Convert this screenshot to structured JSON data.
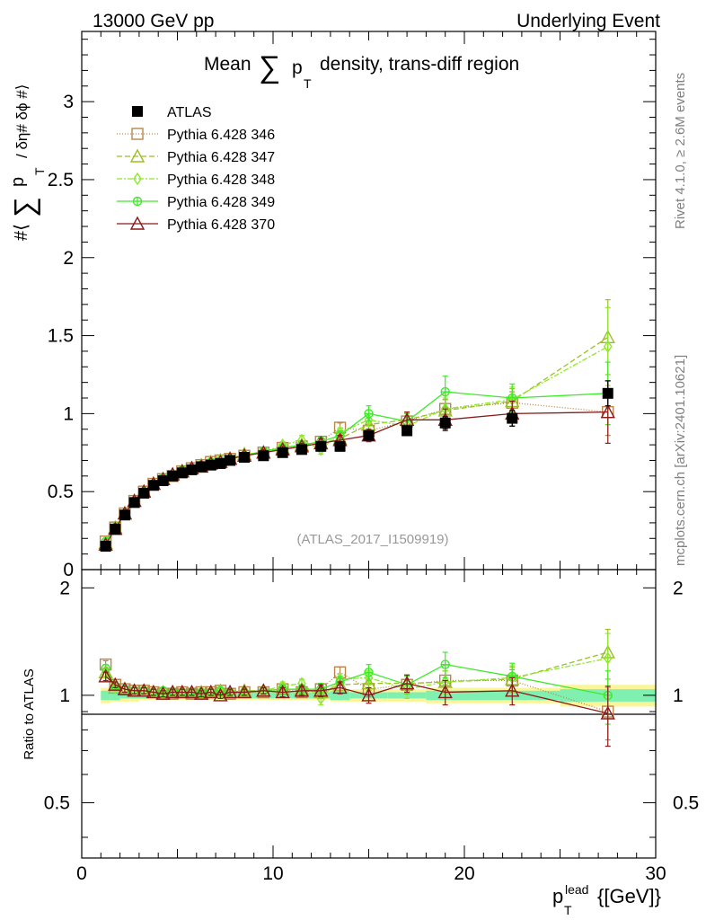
{
  "header": {
    "left": "13000 GeV pp",
    "right": "Underlying Event"
  },
  "side_text": {
    "rivet": "Rivet 4.1.0, ≥ 2.6M events",
    "mcplots": "mcplots.cern.ch [arXiv:2401.10621]"
  },
  "colors": {
    "ATLAS": "#000000",
    "p346": "#b8864a",
    "p347": "#9cbf26",
    "p348": "#8fe82d",
    "p349": "#3fea2a",
    "p370": "#8b1a1a",
    "band_inner": "#7ff0b0",
    "band_outer": "#fbf59a"
  },
  "chart_data": {
    "type": "line",
    "title_parts": {
      "t1": "Mean",
      "t2": "∑",
      "t3": "p",
      "t4": "T",
      "t5": "density, trans-diff region"
    },
    "watermark": "(ATLAS_2017_I1509919)",
    "ylabel_parts": {
      "a": "#⟨",
      "b": "∑",
      "c": "p",
      "d": "T",
      "e": "/ δη# δϕ #⟩"
    },
    "ratio_ylabel": "Ratio to ATLAS",
    "xlabel_parts": {
      "p": "p",
      "sub": "T",
      "sup": "lead",
      "unit": "{[GeV]}"
    },
    "xlim": [
      0,
      30
    ],
    "ylim_main": [
      0,
      3.45
    ],
    "ylim_ratio": [
      0.35,
      2.25
    ],
    "x_ticks": [
      "0",
      "10",
      "20",
      "30"
    ],
    "y_ticks_main": [
      "0.5",
      "1",
      "1.5",
      "2",
      "2.5",
      "3"
    ],
    "y_tick_zero": "0",
    "y_ticks_ratio": [
      "0.5",
      "1",
      "2"
    ],
    "y_ticks_ratio_right": [
      "0.5",
      "1",
      "2"
    ],
    "x": [
      1.25,
      1.75,
      2.25,
      2.75,
      3.25,
      3.75,
      4.25,
      4.75,
      5.25,
      5.75,
      6.25,
      6.75,
      7.25,
      7.75,
      8.5,
      9.5,
      10.5,
      11.5,
      12.5,
      13.5,
      15,
      17,
      19,
      22.5,
      27.5
    ],
    "data_series": {
      "name": "ATLAS",
      "values": [
        0.15,
        0.26,
        0.35,
        0.43,
        0.49,
        0.54,
        0.57,
        0.6,
        0.62,
        0.64,
        0.66,
        0.67,
        0.68,
        0.7,
        0.72,
        0.73,
        0.75,
        0.77,
        0.79,
        0.79,
        0.86,
        0.89,
        0.94,
        0.97,
        1.13
      ],
      "errors": [
        0.01,
        0.01,
        0.01,
        0.01,
        0.01,
        0.01,
        0.01,
        0.01,
        0.01,
        0.01,
        0.01,
        0.01,
        0.01,
        0.01,
        0.01,
        0.01,
        0.01,
        0.02,
        0.02,
        0.02,
        0.02,
        0.03,
        0.04,
        0.05,
        0.08
      ]
    },
    "series": [
      {
        "name": "Pythia 6.428 346",
        "marker": "square",
        "dash": "1,2",
        "values": [
          0.18,
          0.27,
          0.36,
          0.44,
          0.5,
          0.55,
          0.58,
          0.6,
          0.63,
          0.65,
          0.67,
          0.69,
          0.7,
          0.71,
          0.73,
          0.75,
          0.78,
          0.79,
          0.82,
          0.91,
          0.89,
          0.95,
          1.03,
          1.07,
          1.01
        ],
        "errors": [
          0.01,
          0.01,
          0.01,
          0.01,
          0.01,
          0.01,
          0.01,
          0.01,
          0.01,
          0.01,
          0.01,
          0.01,
          0.01,
          0.01,
          0.02,
          0.02,
          0.02,
          0.02,
          0.03,
          0.03,
          0.04,
          0.05,
          0.06,
          0.07,
          0.15
        ],
        "ratio": [
          1.22,
          1.07,
          1.04,
          1.03,
          1.03,
          1.02,
          1.01,
          1.01,
          1.02,
          1.01,
          1.02,
          1.02,
          1.03,
          1.01,
          1.02,
          1.02,
          1.04,
          1.02,
          1.04,
          1.16,
          1.04,
          1.07,
          1.1,
          1.1,
          0.9
        ],
        "ratio_err": [
          0.03,
          0.02,
          0.02,
          0.02,
          0.02,
          0.02,
          0.02,
          0.02,
          0.02,
          0.02,
          0.02,
          0.02,
          0.02,
          0.02,
          0.02,
          0.02,
          0.03,
          0.03,
          0.04,
          0.04,
          0.05,
          0.06,
          0.07,
          0.08,
          0.15
        ]
      },
      {
        "name": "Pythia 6.428 347",
        "marker": "triangle",
        "dash": "6,3",
        "values": [
          0.17,
          0.27,
          0.36,
          0.44,
          0.5,
          0.55,
          0.58,
          0.61,
          0.63,
          0.65,
          0.67,
          0.69,
          0.7,
          0.71,
          0.74,
          0.75,
          0.78,
          0.8,
          0.81,
          0.84,
          0.93,
          0.96,
          1.02,
          1.08,
          1.49
        ],
        "errors": [
          0.01,
          0.01,
          0.01,
          0.01,
          0.01,
          0.01,
          0.01,
          0.01,
          0.01,
          0.01,
          0.01,
          0.01,
          0.01,
          0.01,
          0.02,
          0.02,
          0.02,
          0.02,
          0.03,
          0.03,
          0.04,
          0.05,
          0.07,
          0.08,
          0.24
        ],
        "ratio": [
          1.16,
          1.05,
          1.04,
          1.03,
          1.03,
          1.02,
          1.02,
          1.02,
          1.02,
          1.02,
          1.02,
          1.02,
          1.03,
          1.02,
          1.03,
          1.03,
          1.04,
          1.04,
          1.02,
          1.07,
          1.08,
          1.08,
          1.09,
          1.11,
          1.32
        ],
        "ratio_err": [
          0.03,
          0.02,
          0.02,
          0.02,
          0.02,
          0.02,
          0.02,
          0.02,
          0.02,
          0.02,
          0.02,
          0.02,
          0.02,
          0.02,
          0.02,
          0.02,
          0.03,
          0.03,
          0.04,
          0.04,
          0.05,
          0.06,
          0.08,
          0.09,
          0.21
        ]
      },
      {
        "name": "Pythia 6.428 348",
        "marker": "diamond",
        "dash": "6,2,2,2",
        "values": [
          0.17,
          0.27,
          0.36,
          0.44,
          0.5,
          0.55,
          0.58,
          0.61,
          0.63,
          0.65,
          0.66,
          0.68,
          0.7,
          0.71,
          0.73,
          0.75,
          0.8,
          0.83,
          0.77,
          0.88,
          0.96,
          0.92,
          1.03,
          1.09,
          1.43
        ],
        "errors": [
          0.01,
          0.01,
          0.01,
          0.01,
          0.01,
          0.01,
          0.01,
          0.01,
          0.01,
          0.01,
          0.01,
          0.01,
          0.01,
          0.01,
          0.02,
          0.02,
          0.02,
          0.03,
          0.03,
          0.03,
          0.04,
          0.05,
          0.07,
          0.08,
          0.25
        ],
        "ratio": [
          1.15,
          1.05,
          1.04,
          1.03,
          1.03,
          1.02,
          1.02,
          1.02,
          1.02,
          1.02,
          1.01,
          1.02,
          1.02,
          1.02,
          1.02,
          1.03,
          1.06,
          1.08,
          0.98,
          1.11,
          1.12,
          1.04,
          1.09,
          1.12,
          1.27
        ],
        "ratio_err": [
          0.03,
          0.02,
          0.02,
          0.02,
          0.02,
          0.02,
          0.02,
          0.02,
          0.02,
          0.02,
          0.02,
          0.02,
          0.02,
          0.02,
          0.02,
          0.02,
          0.03,
          0.03,
          0.04,
          0.04,
          0.05,
          0.06,
          0.08,
          0.09,
          0.22
        ]
      },
      {
        "name": "Pythia 6.428 349",
        "marker": "circleplus",
        "dash": "",
        "values": [
          0.18,
          0.27,
          0.36,
          0.44,
          0.5,
          0.55,
          0.59,
          0.61,
          0.64,
          0.65,
          0.67,
          0.69,
          0.7,
          0.71,
          0.73,
          0.76,
          0.78,
          0.8,
          0.82,
          0.86,
          1.0,
          0.95,
          1.14,
          1.1,
          1.13
        ],
        "errors": [
          0.01,
          0.01,
          0.01,
          0.01,
          0.01,
          0.01,
          0.01,
          0.01,
          0.01,
          0.01,
          0.01,
          0.01,
          0.01,
          0.01,
          0.02,
          0.02,
          0.02,
          0.02,
          0.03,
          0.03,
          0.05,
          0.05,
          0.1,
          0.09,
          0.2
        ],
        "ratio": [
          1.19,
          1.06,
          1.04,
          1.03,
          1.03,
          1.02,
          1.03,
          1.02,
          1.02,
          1.02,
          1.02,
          1.02,
          1.03,
          1.02,
          1.02,
          1.03,
          1.04,
          1.04,
          1.04,
          1.09,
          1.16,
          1.07,
          1.22,
          1.13,
          1.0
        ],
        "ratio_err": [
          0.03,
          0.02,
          0.02,
          0.02,
          0.02,
          0.02,
          0.02,
          0.02,
          0.02,
          0.02,
          0.02,
          0.02,
          0.02,
          0.02,
          0.02,
          0.02,
          0.03,
          0.03,
          0.04,
          0.04,
          0.06,
          0.06,
          0.1,
          0.1,
          0.17
        ]
      },
      {
        "name": "Pythia 6.428 370",
        "marker": "triangle",
        "dash": "",
        "values": [
          0.16,
          0.26,
          0.36,
          0.44,
          0.5,
          0.55,
          0.58,
          0.61,
          0.63,
          0.65,
          0.66,
          0.68,
          0.69,
          0.71,
          0.73,
          0.75,
          0.77,
          0.79,
          0.81,
          0.83,
          0.86,
          0.96,
          0.96,
          1.0,
          1.01
        ],
        "errors": [
          0.01,
          0.01,
          0.01,
          0.01,
          0.01,
          0.01,
          0.01,
          0.01,
          0.01,
          0.01,
          0.01,
          0.01,
          0.01,
          0.01,
          0.02,
          0.02,
          0.02,
          0.02,
          0.03,
          0.03,
          0.04,
          0.05,
          0.07,
          0.08,
          0.2
        ],
        "ratio": [
          1.13,
          1.07,
          1.04,
          1.03,
          1.03,
          1.02,
          1.01,
          1.02,
          1.02,
          1.02,
          1.01,
          1.02,
          1.0,
          1.02,
          1.02,
          1.03,
          1.02,
          1.03,
          1.03,
          1.05,
          1.0,
          1.08,
          1.02,
          1.03,
          0.89
        ],
        "ratio_err": [
          0.03,
          0.02,
          0.02,
          0.02,
          0.02,
          0.02,
          0.02,
          0.02,
          0.02,
          0.02,
          0.02,
          0.02,
          0.02,
          0.02,
          0.02,
          0.02,
          0.03,
          0.03,
          0.04,
          0.04,
          0.05,
          0.06,
          0.08,
          0.09,
          0.17
        ]
      }
    ],
    "ratio_band": {
      "x_edges": [
        1.0,
        1.5,
        2.0,
        2.5,
        3.0,
        3.5,
        4.0,
        4.5,
        5.0,
        5.5,
        6.0,
        6.5,
        7.0,
        7.5,
        8.0,
        9.0,
        10.0,
        11.0,
        12.0,
        13.0,
        14.0,
        16.0,
        18.0,
        20.0,
        25.0,
        30.0
      ],
      "inner": [
        0.03,
        0.03,
        0.02,
        0.02,
        0.02,
        0.02,
        0.02,
        0.02,
        0.02,
        0.02,
        0.02,
        0.02,
        0.02,
        0.02,
        0.02,
        0.02,
        0.02,
        0.02,
        0.02,
        0.03,
        0.02,
        0.02,
        0.03,
        0.03,
        0.04
      ],
      "outer": [
        0.05,
        0.04,
        0.04,
        0.04,
        0.03,
        0.03,
        0.03,
        0.03,
        0.03,
        0.03,
        0.03,
        0.03,
        0.03,
        0.03,
        0.03,
        0.03,
        0.03,
        0.03,
        0.03,
        0.04,
        0.04,
        0.04,
        0.05,
        0.05,
        0.07
      ]
    }
  }
}
